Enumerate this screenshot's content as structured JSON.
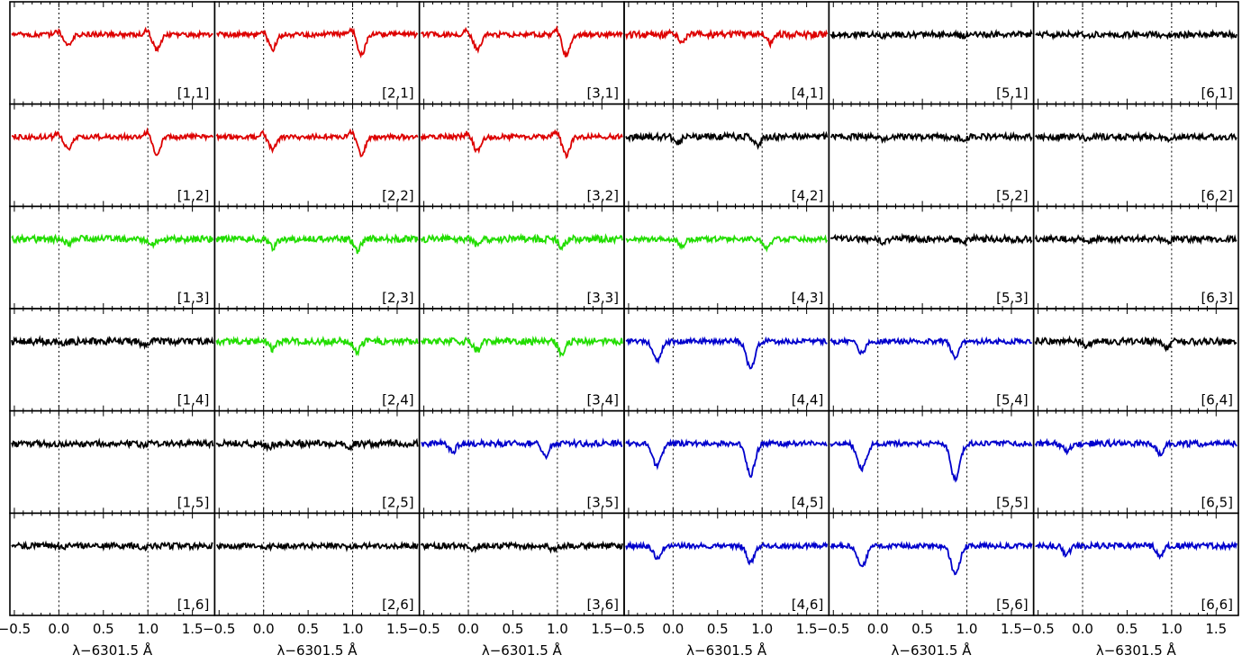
{
  "chart_data": {
    "type": "line",
    "grid_layout": {
      "columns": 6,
      "rows": 6
    },
    "x_axis": {
      "label": "λ−6301.5 Å",
      "range": [
        -0.55,
        1.75
      ],
      "ticks": [
        -0.5,
        0.0,
        0.5,
        1.0,
        1.5
      ],
      "tick_labels": [
        "−0.5",
        "0.0",
        "0.5",
        "1.0",
        "1.5"
      ]
    },
    "reference_lines_x": [
      0.0,
      1.0
    ],
    "line_centers_by_color": {
      "red": [
        0.1,
        1.1
      ],
      "green": [
        0.1,
        1.05
      ],
      "blue": [
        -0.18,
        0.87
      ],
      "black": [
        0.05,
        0.95
      ]
    },
    "colors": {
      "red": "#dd0000",
      "green": "#22dd00",
      "blue": "#0000cc",
      "black": "#000000"
    },
    "panels": [
      {
        "label": "[1,1]",
        "col": 1,
        "row": 1,
        "color": "red",
        "depth": 0.38,
        "noise": 0.06
      },
      {
        "label": "[2,1]",
        "col": 2,
        "row": 1,
        "color": "red",
        "depth": 0.48,
        "noise": 0.06
      },
      {
        "label": "[3,1]",
        "col": 3,
        "row": 1,
        "color": "red",
        "depth": 0.5,
        "noise": 0.06
      },
      {
        "label": "[4,1]",
        "col": 4,
        "row": 1,
        "color": "red",
        "depth": 0.2,
        "noise": 0.08
      },
      {
        "label": "[5,1]",
        "col": 5,
        "row": 1,
        "color": "black",
        "depth": 0.05,
        "noise": 0.07
      },
      {
        "label": "[6,1]",
        "col": 6,
        "row": 1,
        "color": "black",
        "depth": 0.05,
        "noise": 0.07
      },
      {
        "label": "[1,2]",
        "col": 1,
        "row": 2,
        "color": "red",
        "depth": 0.4,
        "noise": 0.06
      },
      {
        "label": "[2,2]",
        "col": 2,
        "row": 2,
        "color": "red",
        "depth": 0.42,
        "noise": 0.06
      },
      {
        "label": "[3,2]",
        "col": 3,
        "row": 2,
        "color": "red",
        "depth": 0.45,
        "noise": 0.06
      },
      {
        "label": "[4,2]",
        "col": 4,
        "row": 2,
        "color": "black",
        "depth": 0.2,
        "noise": 0.08
      },
      {
        "label": "[5,2]",
        "col": 5,
        "row": 2,
        "color": "black",
        "depth": 0.08,
        "noise": 0.07
      },
      {
        "label": "[6,2]",
        "col": 6,
        "row": 2,
        "color": "black",
        "depth": 0.05,
        "noise": 0.07
      },
      {
        "label": "[1,3]",
        "col": 1,
        "row": 3,
        "color": "green",
        "depth": 0.15,
        "noise": 0.08
      },
      {
        "label": "[2,3]",
        "col": 2,
        "row": 3,
        "color": "green",
        "depth": 0.28,
        "noise": 0.08
      },
      {
        "label": "[3,3]",
        "col": 3,
        "row": 3,
        "color": "green",
        "depth": 0.18,
        "noise": 0.08
      },
      {
        "label": "[4,3]",
        "col": 4,
        "row": 3,
        "color": "green",
        "depth": 0.22,
        "noise": 0.06
      },
      {
        "label": "[5,3]",
        "col": 5,
        "row": 3,
        "color": "black",
        "depth": 0.1,
        "noise": 0.08
      },
      {
        "label": "[6,3]",
        "col": 6,
        "row": 3,
        "color": "black",
        "depth": 0.08,
        "noise": 0.07
      },
      {
        "label": "[1,4]",
        "col": 1,
        "row": 4,
        "color": "black",
        "depth": 0.1,
        "noise": 0.08
      },
      {
        "label": "[2,4]",
        "col": 2,
        "row": 4,
        "color": "green",
        "depth": 0.25,
        "noise": 0.08
      },
      {
        "label": "[3,4]",
        "col": 3,
        "row": 4,
        "color": "green",
        "depth": 0.3,
        "noise": 0.08
      },
      {
        "label": "[4,4]",
        "col": 4,
        "row": 4,
        "color": "blue",
        "depth": 0.65,
        "noise": 0.06
      },
      {
        "label": "[5,4]",
        "col": 5,
        "row": 4,
        "color": "blue",
        "depth": 0.4,
        "noise": 0.06
      },
      {
        "label": "[6,4]",
        "col": 6,
        "row": 4,
        "color": "black",
        "depth": 0.14,
        "noise": 0.08
      },
      {
        "label": "[1,5]",
        "col": 1,
        "row": 5,
        "color": "black",
        "depth": 0.05,
        "noise": 0.07
      },
      {
        "label": "[2,5]",
        "col": 2,
        "row": 5,
        "color": "black",
        "depth": 0.12,
        "noise": 0.08
      },
      {
        "label": "[3,5]",
        "col": 3,
        "row": 5,
        "color": "blue",
        "depth": 0.28,
        "noise": 0.07
      },
      {
        "label": "[4,5]",
        "col": 4,
        "row": 5,
        "color": "blue",
        "depth": 0.75,
        "noise": 0.06
      },
      {
        "label": "[5,5]",
        "col": 5,
        "row": 5,
        "color": "blue",
        "depth": 0.85,
        "noise": 0.06
      },
      {
        "label": "[6,5]",
        "col": 6,
        "row": 5,
        "color": "blue",
        "depth": 0.25,
        "noise": 0.07
      },
      {
        "label": "[1,6]",
        "col": 1,
        "row": 6,
        "color": "black",
        "depth": 0.05,
        "noise": 0.07
      },
      {
        "label": "[2,6]",
        "col": 2,
        "row": 6,
        "color": "black",
        "depth": 0.04,
        "noise": 0.06
      },
      {
        "label": "[3,6]",
        "col": 3,
        "row": 6,
        "color": "black",
        "depth": 0.1,
        "noise": 0.07
      },
      {
        "label": "[4,6]",
        "col": 4,
        "row": 6,
        "color": "blue",
        "depth": 0.4,
        "noise": 0.06
      },
      {
        "label": "[5,6]",
        "col": 5,
        "row": 6,
        "color": "blue",
        "depth": 0.7,
        "noise": 0.06
      },
      {
        "label": "[6,6]",
        "col": 6,
        "row": 6,
        "color": "blue",
        "depth": 0.28,
        "noise": 0.07
      }
    ]
  }
}
